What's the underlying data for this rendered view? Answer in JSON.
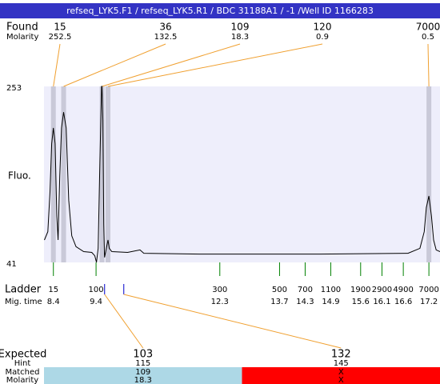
{
  "chart_data": {
    "type": "line",
    "title": "refseq_LYK5.F1 / refseq_LYK5.R1 / BDC 31188A1 / -1 /Well ID 1166283",
    "y_label": "Fluo.",
    "ylim": [
      41,
      253
    ],
    "yticks": [
      41,
      253
    ],
    "xlim": [
      8.18,
      17.46
    ],
    "color": "#000000",
    "x": [
      8.19,
      8.27,
      8.32,
      8.36,
      8.4,
      8.44,
      8.48,
      8.51,
      8.55,
      8.59,
      8.64,
      8.7,
      8.76,
      8.83,
      8.93,
      9.11,
      9.3,
      9.37,
      9.41,
      9.45,
      9.49,
      9.53,
      9.54,
      9.56,
      9.58,
      9.6,
      9.64,
      9.68,
      9.71,
      9.77,
      10.14,
      10.43,
      10.52,
      11.83,
      14.65,
      16.71,
      16.99,
      17.09,
      17.14,
      17.2,
      17.26,
      17.31,
      17.37,
      17.46
    ],
    "values": [
      68,
      78,
      126,
      184,
      203,
      184,
      97,
      68,
      145,
      203,
      222,
      203,
      116,
      73,
      60,
      54,
      53,
      49,
      41,
      58,
      164,
      253,
      253,
      212,
      87,
      47,
      58,
      68,
      58,
      54,
      53,
      56,
      52,
      51,
      51,
      52,
      58,
      78,
      107,
      121,
      97,
      68,
      56,
      54
    ],
    "found": {
      "label": "Found",
      "molarity_label": "Molarity",
      "peaks": [
        {
          "size": 15,
          "molarity": 252.5,
          "x": 8.4
        },
        {
          "size": 36,
          "molarity": 132.5,
          "x": 8.64
        },
        {
          "size": 109,
          "molarity": 18.3,
          "x": 9.54
        },
        {
          "size": 120,
          "molarity": 0.9,
          "x": 9.68
        },
        {
          "size": 7000,
          "molarity": 0.5,
          "x": 17.2
        }
      ]
    },
    "ladder": {
      "label": "Ladder",
      "time_label": "Mig. time",
      "sizes": [
        15,
        100,
        300,
        500,
        700,
        1100,
        1900,
        2900,
        4900,
        7000
      ],
      "times": [
        8.4,
        9.4,
        12.3,
        13.7,
        14.3,
        14.9,
        15.6,
        16.1,
        16.6,
        17.2
      ]
    },
    "expected": {
      "label": "Expected",
      "hint_label": "Hint",
      "matched_label": "Matched",
      "molarity_label": "Molarity",
      "peaks": [
        {
          "size": 103,
          "hint": 115,
          "matched": 109,
          "molarity": 18.3,
          "x": 9.6,
          "color": "#add8e6"
        },
        {
          "size": 132,
          "hint": 145,
          "matched": "X",
          "molarity": "X",
          "x": 10.05,
          "color": "#ff0000"
        }
      ]
    }
  }
}
